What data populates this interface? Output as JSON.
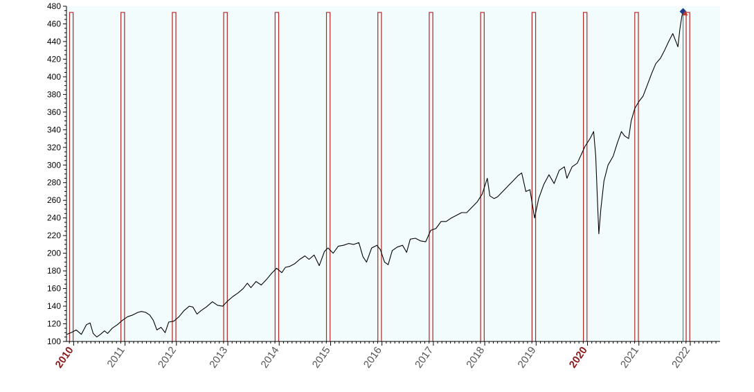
{
  "chart_data": {
    "type": "line",
    "title": "",
    "xlabel": "",
    "ylabel": "",
    "ylim": [
      100,
      480
    ],
    "xlim": [
      2009.86,
      2022.58
    ],
    "y_ticks": [
      100,
      120,
      140,
      160,
      180,
      200,
      220,
      240,
      260,
      280,
      300,
      320,
      340,
      360,
      380,
      400,
      420,
      440,
      460,
      480
    ],
    "x_ticks": [
      {
        "label": "2010",
        "value": 2010,
        "highlight": true
      },
      {
        "label": "2011",
        "value": 2011,
        "highlight": false
      },
      {
        "label": "2012",
        "value": 2012,
        "highlight": false
      },
      {
        "label": "2013",
        "value": 2013,
        "highlight": false
      },
      {
        "label": "2014",
        "value": 2014,
        "highlight": false
      },
      {
        "label": "2015",
        "value": 2015,
        "highlight": false
      },
      {
        "label": "2016",
        "value": 2016,
        "highlight": false
      },
      {
        "label": "2017",
        "value": 2017,
        "highlight": false
      },
      {
        "label": "2018",
        "value": 2018,
        "highlight": false
      },
      {
        "label": "2019",
        "value": 2019,
        "highlight": false
      },
      {
        "label": "2020",
        "value": 2020,
        "highlight": true
      },
      {
        "label": "2021",
        "value": 2021,
        "highlight": false
      },
      {
        "label": "2022",
        "value": 2022,
        "highlight": false
      }
    ],
    "seasonal_windows": [
      {
        "start": 2009.92,
        "end": 2009.99
      },
      {
        "start": 2010.92,
        "end": 2010.99
      },
      {
        "start": 2011.92,
        "end": 2011.99
      },
      {
        "start": 2012.92,
        "end": 2012.99
      },
      {
        "start": 2013.92,
        "end": 2013.99
      },
      {
        "start": 2014.92,
        "end": 2014.99
      },
      {
        "start": 2015.92,
        "end": 2015.99
      },
      {
        "start": 2016.92,
        "end": 2016.99
      },
      {
        "start": 2017.92,
        "end": 2017.99
      },
      {
        "start": 2018.92,
        "end": 2018.99
      },
      {
        "start": 2019.92,
        "end": 2019.99
      },
      {
        "start": 2020.92,
        "end": 2020.99
      },
      {
        "start": 2021.92,
        "end": 2021.99
      }
    ],
    "window_top": 473,
    "series": [
      {
        "values": [
          [
            2009.87,
            108
          ],
          [
            2009.95,
            110
          ],
          [
            2010.05,
            113
          ],
          [
            2010.15,
            108
          ],
          [
            2010.25,
            119
          ],
          [
            2010.32,
            121
          ],
          [
            2010.38,
            109
          ],
          [
            2010.45,
            105
          ],
          [
            2010.52,
            108
          ],
          [
            2010.6,
            112
          ],
          [
            2010.66,
            109
          ],
          [
            2010.75,
            115
          ],
          [
            2010.85,
            119
          ],
          [
            2010.95,
            124
          ],
          [
            2011.05,
            128
          ],
          [
            2011.15,
            130
          ],
          [
            2011.25,
            133
          ],
          [
            2011.32,
            134
          ],
          [
            2011.4,
            133
          ],
          [
            2011.48,
            130
          ],
          [
            2011.55,
            124
          ],
          [
            2011.62,
            113
          ],
          [
            2011.7,
            116
          ],
          [
            2011.78,
            110
          ],
          [
            2011.85,
            122
          ],
          [
            2011.95,
            123
          ],
          [
            2012.05,
            128
          ],
          [
            2012.15,
            135
          ],
          [
            2012.25,
            140
          ],
          [
            2012.32,
            139
          ],
          [
            2012.4,
            131
          ],
          [
            2012.48,
            135
          ],
          [
            2012.58,
            139
          ],
          [
            2012.7,
            145
          ],
          [
            2012.8,
            141
          ],
          [
            2012.9,
            140
          ],
          [
            2013.0,
            146
          ],
          [
            2013.1,
            151
          ],
          [
            2013.2,
            155
          ],
          [
            2013.3,
            160
          ],
          [
            2013.38,
            166
          ],
          [
            2013.45,
            161
          ],
          [
            2013.55,
            168
          ],
          [
            2013.65,
            164
          ],
          [
            2013.75,
            170
          ],
          [
            2013.85,
            177
          ],
          [
            2013.95,
            183
          ],
          [
            2014.05,
            178
          ],
          [
            2014.12,
            184
          ],
          [
            2014.2,
            185
          ],
          [
            2014.3,
            188
          ],
          [
            2014.4,
            193
          ],
          [
            2014.5,
            197
          ],
          [
            2014.58,
            193
          ],
          [
            2014.68,
            198
          ],
          [
            2014.78,
            186
          ],
          [
            2014.88,
            202
          ],
          [
            2014.95,
            206
          ],
          [
            2015.05,
            200
          ],
          [
            2015.15,
            208
          ],
          [
            2015.25,
            209
          ],
          [
            2015.35,
            211
          ],
          [
            2015.45,
            210
          ],
          [
            2015.55,
            212
          ],
          [
            2015.63,
            196
          ],
          [
            2015.7,
            190
          ],
          [
            2015.8,
            206
          ],
          [
            2015.9,
            209
          ],
          [
            2015.97,
            204
          ],
          [
            2016.05,
            190
          ],
          [
            2016.12,
            187
          ],
          [
            2016.2,
            203
          ],
          [
            2016.3,
            207
          ],
          [
            2016.4,
            209
          ],
          [
            2016.48,
            201
          ],
          [
            2016.55,
            216
          ],
          [
            2016.65,
            217
          ],
          [
            2016.75,
            214
          ],
          [
            2016.85,
            213
          ],
          [
            2016.95,
            226
          ],
          [
            2017.05,
            228
          ],
          [
            2017.15,
            236
          ],
          [
            2017.25,
            236
          ],
          [
            2017.35,
            240
          ],
          [
            2017.45,
            243
          ],
          [
            2017.55,
            246
          ],
          [
            2017.65,
            246
          ],
          [
            2017.75,
            252
          ],
          [
            2017.85,
            258
          ],
          [
            2017.95,
            267
          ],
          [
            2018.05,
            285
          ],
          [
            2018.1,
            265
          ],
          [
            2018.18,
            262
          ],
          [
            2018.25,
            264
          ],
          [
            2018.35,
            270
          ],
          [
            2018.45,
            276
          ],
          [
            2018.55,
            282
          ],
          [
            2018.65,
            288
          ],
          [
            2018.72,
            291
          ],
          [
            2018.8,
            270
          ],
          [
            2018.88,
            272
          ],
          [
            2018.97,
            240
          ],
          [
            2019.05,
            262
          ],
          [
            2019.15,
            278
          ],
          [
            2019.25,
            289
          ],
          [
            2019.35,
            279
          ],
          [
            2019.45,
            294
          ],
          [
            2019.55,
            298
          ],
          [
            2019.6,
            285
          ],
          [
            2019.7,
            298
          ],
          [
            2019.8,
            302
          ],
          [
            2019.88,
            312
          ],
          [
            2019.95,
            321
          ],
          [
            2020.05,
            330
          ],
          [
            2020.12,
            338
          ],
          [
            2020.16,
            310
          ],
          [
            2020.2,
            250
          ],
          [
            2020.22,
            222
          ],
          [
            2020.26,
            250
          ],
          [
            2020.32,
            282
          ],
          [
            2020.4,
            300
          ],
          [
            2020.5,
            310
          ],
          [
            2020.58,
            325
          ],
          [
            2020.66,
            338
          ],
          [
            2020.72,
            333
          ],
          [
            2020.8,
            330
          ],
          [
            2020.85,
            350
          ],
          [
            2020.92,
            364
          ],
          [
            2021.0,
            372
          ],
          [
            2021.08,
            378
          ],
          [
            2021.16,
            390
          ],
          [
            2021.25,
            404
          ],
          [
            2021.33,
            415
          ],
          [
            2021.42,
            421
          ],
          [
            2021.5,
            430
          ],
          [
            2021.58,
            440
          ],
          [
            2021.66,
            449
          ],
          [
            2021.72,
            440
          ],
          [
            2021.76,
            434
          ],
          [
            2021.8,
            455
          ],
          [
            2021.84,
            470
          ],
          [
            2021.86,
            473
          ]
        ]
      }
    ],
    "end_markers": [
      {
        "symbol": "diamond",
        "x": 2021.86,
        "y": 474,
        "color": "#1f3a8a"
      },
      {
        "symbol": "triangle",
        "x": 2021.9,
        "y": 472,
        "color": "#c0392b"
      }
    ],
    "colors": {
      "plot_background": "#f2fcfc",
      "line": "#000000",
      "window": "#b22222",
      "highlight_tick": "#8b1a1a",
      "tick_label": "#555555"
    }
  }
}
